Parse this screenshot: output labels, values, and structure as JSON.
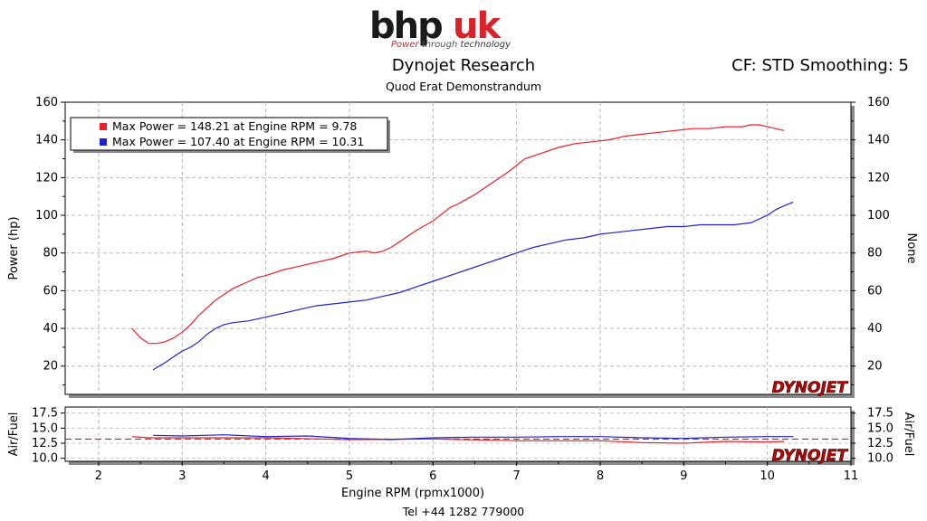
{
  "header": {
    "logo_text": "bhpuk",
    "logo_tagline": "Power through technology",
    "title": "Dynojet Research",
    "subtitle": "Quod Erat Demonstrandum",
    "cf_info": "CF: STD Smoothing: 5"
  },
  "footer": {
    "phone": "Tel +44 1282 779000"
  },
  "watermark": "DYNOJET",
  "colors": {
    "run1": "#e8202a",
    "run2": "#2222cc",
    "ref_line": "#cc0000",
    "watermark_red": "#cc0000"
  },
  "chart_data": [
    {
      "type": "line",
      "xlabel": "Engine RPM (rpmx1000)",
      "ylabel": "Power (hp)",
      "ylabel_right": "None",
      "xlim": [
        1.6,
        11
      ],
      "ylim": [
        5,
        160
      ],
      "x_ticks": [
        2,
        3,
        4,
        5,
        6,
        7,
        8,
        9,
        10,
        11
      ],
      "y_ticks": [
        20,
        40,
        60,
        80,
        100,
        120,
        140,
        160
      ],
      "grid": true,
      "legend_position": "top-left",
      "legend": [
        "Max Power = 148.21 at Engine RPM = 9.78",
        "Max Power = 107.40 at Engine RPM = 10.31"
      ],
      "series": [
        {
          "color": "#e8202a",
          "x": [
            2.4,
            2.5,
            2.6,
            2.7,
            2.8,
            2.9,
            3.0,
            3.1,
            3.2,
            3.3,
            3.4,
            3.5,
            3.6,
            3.7,
            3.8,
            3.9,
            4.0,
            4.2,
            4.4,
            4.6,
            4.8,
            5.0,
            5.2,
            5.3,
            5.4,
            5.5,
            5.6,
            5.8,
            6.0,
            6.2,
            6.3,
            6.5,
            6.7,
            6.9,
            7.1,
            7.3,
            7.5,
            7.7,
            7.9,
            8.1,
            8.3,
            8.5,
            8.7,
            8.9,
            9.1,
            9.3,
            9.5,
            9.7,
            9.8,
            9.9,
            10.0,
            10.1,
            10.2
          ],
          "y": [
            40,
            35,
            32,
            32,
            33,
            35,
            38,
            42,
            47,
            51,
            55,
            58,
            61,
            63,
            65,
            67,
            68,
            71,
            73,
            75,
            77,
            80,
            81,
            80,
            81,
            83,
            86,
            92,
            97,
            104,
            106,
            111,
            117,
            123,
            130,
            133,
            136,
            138,
            139,
            140,
            142,
            143,
            144,
            145,
            146,
            146,
            147,
            147,
            148,
            148,
            147,
            146,
            145
          ]
        },
        {
          "color": "#2222cc",
          "x": [
            2.65,
            2.8,
            2.9,
            3.0,
            3.1,
            3.2,
            3.3,
            3.4,
            3.5,
            3.6,
            3.8,
            4.0,
            4.2,
            4.4,
            4.6,
            4.8,
            5.0,
            5.2,
            5.4,
            5.6,
            5.8,
            6.0,
            6.2,
            6.4,
            6.6,
            6.8,
            7.0,
            7.2,
            7.4,
            7.6,
            7.8,
            8.0,
            8.2,
            8.4,
            8.6,
            8.8,
            9.0,
            9.2,
            9.4,
            9.6,
            9.8,
            10.0,
            10.1,
            10.2,
            10.31
          ],
          "y": [
            18,
            22,
            25,
            28,
            30,
            33,
            37,
            40,
            42,
            43,
            44,
            46,
            48,
            50,
            52,
            53,
            54,
            55,
            57,
            59,
            62,
            65,
            68,
            71,
            74,
            77,
            80,
            83,
            85,
            87,
            88,
            90,
            91,
            92,
            93,
            94,
            94,
            95,
            95,
            95,
            96,
            100,
            103,
            105,
            107
          ]
        }
      ]
    },
    {
      "type": "line",
      "xlabel": "Engine RPM (rpmx1000)",
      "ylabel": "Air/Fuel",
      "ylabel_right": "Air/Fuel",
      "xlim": [
        1.6,
        11
      ],
      "ylim": [
        9.5,
        18.5
      ],
      "y_ticks": [
        10.0,
        12.5,
        15.0,
        17.5
      ],
      "y_tick_labels": [
        "10.0",
        "12.5",
        "15.0",
        "17.5"
      ],
      "grid": true,
      "reference_line": 13.2,
      "series": [
        {
          "color": "#e8202a",
          "x": [
            2.4,
            2.6,
            3.0,
            4.0,
            5.0,
            6.0,
            7.0,
            8.0,
            8.5,
            9.0,
            9.5,
            10.0,
            10.2
          ],
          "y": [
            13.6,
            13.4,
            13.4,
            13.4,
            13.1,
            13.2,
            12.9,
            12.9,
            12.6,
            12.5,
            12.8,
            12.7,
            12.8
          ]
        },
        {
          "color": "#2222cc",
          "x": [
            2.65,
            3.0,
            3.5,
            4.0,
            4.5,
            5.0,
            5.5,
            6.0,
            6.5,
            7.0,
            7.5,
            8.0,
            8.5,
            9.0,
            9.5,
            10.0,
            10.31
          ],
          "y": [
            13.8,
            13.7,
            13.9,
            13.6,
            13.7,
            13.3,
            13.1,
            13.4,
            13.5,
            13.5,
            13.6,
            13.6,
            13.4,
            13.3,
            13.5,
            13.6,
            13.6
          ]
        }
      ]
    }
  ]
}
